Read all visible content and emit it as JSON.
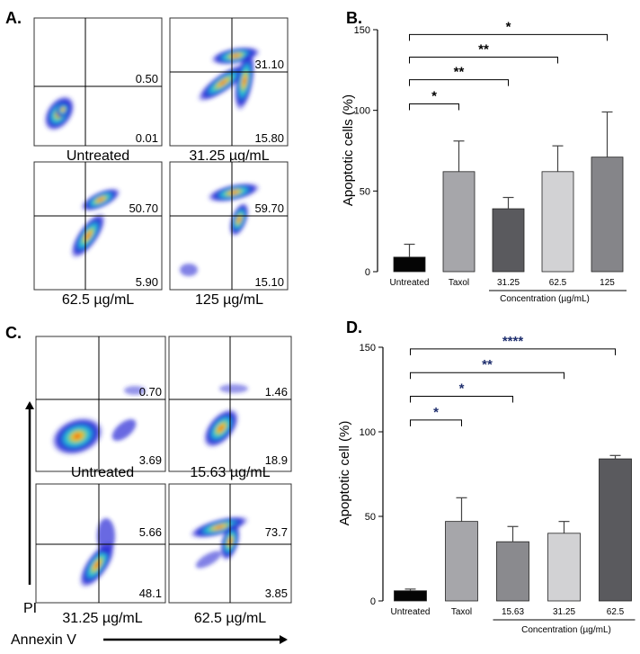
{
  "colors": {
    "flow_bg": "#2b2bd6",
    "flow_mid": "#22c7d9",
    "flow_hot": "#f5c51b",
    "flow_core": "#e53a1e"
  },
  "panels": {
    "A": {
      "letter": "A.",
      "plots": [
        {
          "label": "Untreated",
          "q_upper": "0.50",
          "q_lower": "0.01"
        },
        {
          "label": "31.25 µg/mL",
          "q_upper": "31.10",
          "q_lower": "15.80"
        },
        {
          "label": "62.5 µg/mL",
          "q_upper": "50.70",
          "q_lower": "5.90"
        },
        {
          "label": "125 µg/mL",
          "q_upper": "59.70",
          "q_lower": "15.10"
        }
      ]
    },
    "C": {
      "letter": "C.",
      "y_axis_label": "PI",
      "x_axis_label": "Annexin V",
      "plots": [
        {
          "label": "Untreated",
          "q_upper": "0.70",
          "q_lower": "3.69"
        },
        {
          "label": "15.63 µg/mL",
          "q_upper": "1.46",
          "q_lower": "18.9"
        },
        {
          "label": "31.25 µg/mL",
          "q_upper": "5.66",
          "q_lower": "48.1"
        },
        {
          "label": "62.5 µg/mL",
          "q_upper": "73.7",
          "q_lower": "3.85"
        }
      ]
    }
  },
  "chart_data": [
    {
      "panel": "B.",
      "type": "bar",
      "title": "",
      "xlabel": "Concentration (µg/mL)",
      "ylabel": "Apoptotic cells (%)",
      "ylim": [
        0,
        150
      ],
      "yticks": [
        "0",
        "50",
        "100",
        "150"
      ],
      "categories": [
        "Untreated",
        "Taxol",
        "31.25",
        "62.5",
        "125"
      ],
      "values": [
        9,
        62,
        39,
        62,
        71
      ],
      "errors": [
        8,
        19,
        7,
        16,
        28
      ],
      "bar_colors": [
        "#050505",
        "#a6a6aa",
        "#5a5a5e",
        "#d2d2d4",
        "#858589"
      ],
      "significance": [
        {
          "from": 0,
          "to": 1,
          "stars": "*",
          "y": 104
        },
        {
          "from": 0,
          "to": 2,
          "stars": "**",
          "y": 119
        },
        {
          "from": 0,
          "to": 3,
          "stars": "**",
          "y": 133
        },
        {
          "from": 0,
          "to": 4,
          "stars": "*",
          "y": 147
        }
      ],
      "concentration_span": [
        2,
        4
      ],
      "star_color": "#000000"
    },
    {
      "panel": "D.",
      "type": "bar",
      "title": "",
      "xlabel": "Concentration (µg/mL)",
      "ylabel": "Apoptotic cell (%)",
      "ylim": [
        0,
        150
      ],
      "yticks": [
        "0",
        "50",
        "100",
        "150"
      ],
      "categories": [
        "Untreated",
        "Taxol",
        "15.63",
        "31.25",
        "62.5"
      ],
      "values": [
        6,
        47,
        35,
        40,
        84
      ],
      "errors": [
        1,
        14,
        9,
        7,
        2
      ],
      "bar_colors": [
        "#050505",
        "#a6a6aa",
        "#8a8a8e",
        "#d2d2d4",
        "#5a5a5e"
      ],
      "significance": [
        {
          "from": 0,
          "to": 1,
          "stars": "*",
          "y": 107
        },
        {
          "from": 0,
          "to": 2,
          "stars": "*",
          "y": 121
        },
        {
          "from": 0,
          "to": 3,
          "stars": "**",
          "y": 135
        },
        {
          "from": 0,
          "to": 4,
          "stars": "****",
          "y": 149
        }
      ],
      "concentration_span": [
        2,
        4
      ],
      "star_color": "#1f2f6e"
    }
  ]
}
